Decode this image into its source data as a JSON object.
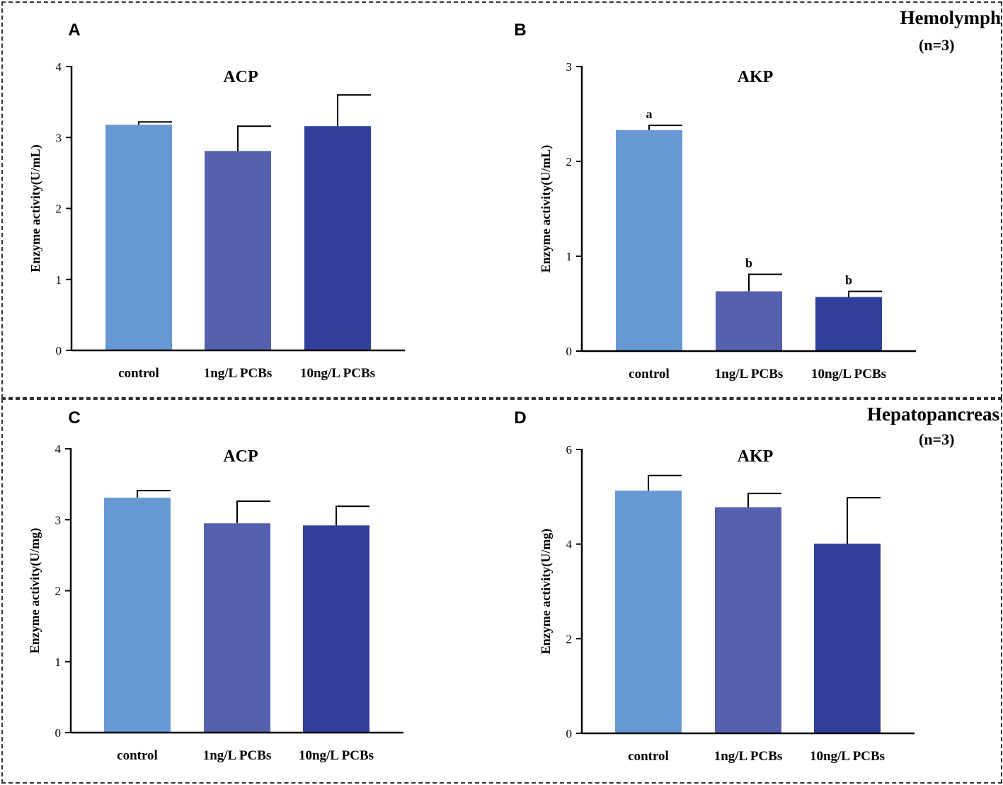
{
  "groups": {
    "top": {
      "name": "Hemolymph",
      "n": "(n=3)"
    },
    "bottom": {
      "name": "Hepatopancreas",
      "n": "(n=3)"
    }
  },
  "colors": {
    "control": "#6699d3",
    "1ng": "#5560ae",
    "10ng": "#30409a"
  },
  "chart_data": [
    {
      "panel": "A",
      "type": "bar",
      "title": "ACP",
      "ylabel": "Enzyme activity(U/mL)",
      "categories": [
        "control",
        "1ng/L PCBs",
        "10ng/L PCBs"
      ],
      "values": [
        3.18,
        2.81,
        3.16
      ],
      "errors": [
        0.04,
        0.35,
        0.44
      ],
      "letters": [
        "",
        "",
        ""
      ],
      "ylim": [
        0,
        4
      ],
      "yticks": [
        0,
        1,
        2,
        3,
        4
      ]
    },
    {
      "panel": "B",
      "type": "bar",
      "title": "AKP",
      "ylabel": "Enzyme activity(U/mL)",
      "categories": [
        "control",
        "1ng/L PCBs",
        "10ng/L PCBs"
      ],
      "values": [
        2.33,
        0.63,
        0.57
      ],
      "errors": [
        0.05,
        0.18,
        0.06
      ],
      "letters": [
        "a",
        "b",
        "b"
      ],
      "ylim": [
        0,
        3
      ],
      "yticks": [
        0,
        1,
        2,
        3
      ]
    },
    {
      "panel": "C",
      "type": "bar",
      "title": "ACP",
      "ylabel": "Enzyme activity(U/mg)",
      "categories": [
        "control",
        "1ng/L PCBs",
        "10ng/L PCBs"
      ],
      "values": [
        3.31,
        2.95,
        2.92
      ],
      "errors": [
        0.1,
        0.31,
        0.27
      ],
      "letters": [
        "",
        "",
        ""
      ],
      "ylim": [
        0,
        4
      ],
      "yticks": [
        0,
        1,
        2,
        3,
        4
      ]
    },
    {
      "panel": "D",
      "type": "bar",
      "title": "AKP",
      "ylabel": "Enzyme activity(U/mg)",
      "categories": [
        "control",
        "1ng/L PCBs",
        "10ng/L PCBs"
      ],
      "values": [
        5.13,
        4.78,
        4.01
      ],
      "errors": [
        0.32,
        0.29,
        0.97
      ],
      "letters": [
        "",
        "",
        ""
      ],
      "ylim": [
        0,
        6
      ],
      "yticks": [
        0,
        2,
        4,
        6
      ]
    }
  ]
}
